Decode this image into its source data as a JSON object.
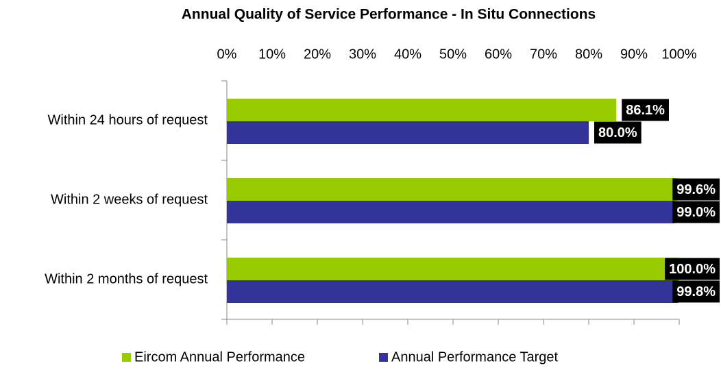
{
  "chart_data": {
    "type": "bar",
    "orientation": "horizontal",
    "title": "Annual Quality of Service Performance - In Situ Connections",
    "categories": [
      "Within 24 hours of request",
      "Within 2 weeks of request",
      "Within 2 months of request"
    ],
    "series": [
      {
        "name": "Eircom Annual Performance",
        "color": "#99cc00",
        "values": [
          86.1,
          99.6,
          100.0
        ],
        "value_labels": [
          "86.1%",
          "99.6%",
          "100.0%"
        ]
      },
      {
        "name": "Annual Performance Target",
        "color": "#333399",
        "values": [
          80.0,
          99.0,
          99.8
        ],
        "value_labels": [
          "80.0%",
          "99.0%",
          "99.8%"
        ]
      }
    ],
    "xlim": [
      0,
      100
    ],
    "xticks": [
      {
        "value": 0,
        "label": "0%"
      },
      {
        "value": 10,
        "label": "10%"
      },
      {
        "value": 20,
        "label": "20%"
      },
      {
        "value": 30,
        "label": "30%"
      },
      {
        "value": 40,
        "label": "40%"
      },
      {
        "value": 50,
        "label": "50%"
      },
      {
        "value": 60,
        "label": "60%"
      },
      {
        "value": 70,
        "label": "70%"
      },
      {
        "value": 80,
        "label": "80%"
      },
      {
        "value": 90,
        "label": "90%"
      },
      {
        "value": 100,
        "label": "100%"
      }
    ],
    "xaxis_position": "top",
    "legend": "bottom"
  }
}
